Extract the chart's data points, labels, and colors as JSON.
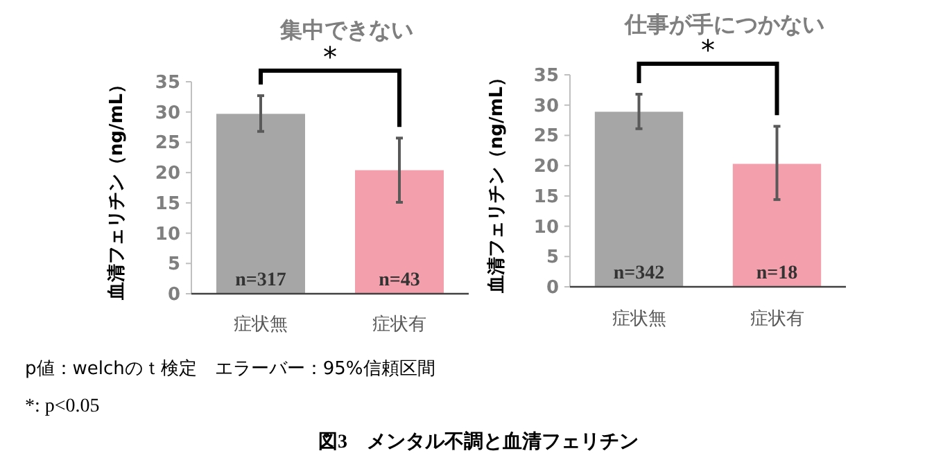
{
  "chart_data": [
    {
      "type": "bar",
      "title": "集中できない",
      "ylabel": "血清フェリチン（ng/mL）",
      "categories": [
        "症状無",
        "症状有"
      ],
      "values": [
        29.7,
        20.4
      ],
      "colors": [
        "#a6a6a6",
        "#f4a0ac"
      ],
      "errors": [
        [
          26.8,
          32.7
        ],
        [
          15.1,
          25.7
        ]
      ],
      "ylim": [
        0,
        35
      ],
      "yticks": [
        0,
        5,
        10,
        15,
        20,
        25,
        30,
        35
      ],
      "grid": false,
      "annotations": [
        "n=317",
        "n=43",
        "*"
      ]
    },
    {
      "type": "bar",
      "title": "仕事が手につかない",
      "ylabel": "血清フェリチン（ng/mL）",
      "categories": [
        "症状無",
        "症状有"
      ],
      "values": [
        28.9,
        20.3
      ],
      "colors": [
        "#a6a6a6",
        "#f4a0ac"
      ],
      "errors": [
        [
          26.1,
          31.8
        ],
        [
          14.4,
          26.5
        ]
      ],
      "ylim": [
        0,
        35
      ],
      "yticks": [
        0,
        5,
        10,
        15,
        20,
        25,
        30,
        35
      ],
      "grid": false,
      "annotations": [
        "n=342",
        "n=18",
        "*",
        "p値：welchのｔ検定　エラーバー：95%信頼区間",
        "*: p<0.05",
        "図3　メンタル不調と血清フェリチン"
      ]
    }
  ]
}
